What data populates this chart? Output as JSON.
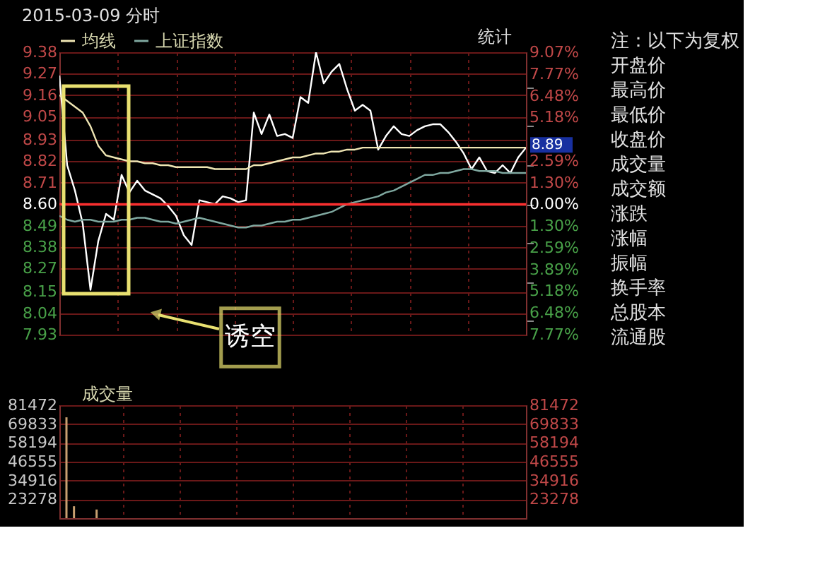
{
  "chart_data": [
    {
      "type": "line",
      "title": "2015-03-09 分时",
      "categories": [
        null,
        null,
        null,
        null,
        null,
        null,
        null,
        null,
        null,
        null,
        null,
        null,
        null,
        null,
        null,
        null,
        null,
        null,
        null,
        null,
        null,
        null,
        null,
        null,
        null,
        null,
        null,
        null,
        null,
        null,
        null,
        null,
        null,
        null,
        null,
        null,
        null,
        null,
        null,
        null,
        null,
        null,
        null,
        null,
        null,
        null,
        null,
        null,
        null,
        null,
        null,
        null,
        null,
        null,
        null,
        null,
        null,
        null,
        null,
        null,
        null
      ],
      "tick_labels": "y",
      "grid": true,
      "legend": "top",
      "ylim": [
        7.93,
        9.38
      ],
      "yticks": [
        9.38,
        9.27,
        9.16,
        9.05,
        8.93,
        8.82,
        8.71,
        {
          "value": 8.6,
          "label": "8.60"
        },
        8.49,
        8.38,
        8.27,
        8.15,
        8.04,
        7.93
      ],
      "y2lim": [
        -7.77,
        9.07
      ],
      "y2ticks": [
        {
          "value": 9.07,
          "label": "9.07%"
        },
        {
          "value": 7.77,
          "label": "7.77%"
        },
        {
          "value": 6.48,
          "label": "6.48%"
        },
        {
          "value": 5.18,
          "label": "5.18%"
        },
        {
          "value": 3.89,
          "label": null
        },
        {
          "value": 2.59,
          "label": "2.59%"
        },
        {
          "value": 1.3,
          "label": "1.30%"
        },
        {
          "value": 0,
          "label": "0.00%"
        },
        {
          "value": -1.3,
          "label": "1.30%"
        },
        {
          "value": -2.59,
          "label": "2.59%"
        },
        {
          "value": -3.89,
          "label": "3.89%"
        },
        {
          "value": -5.18,
          "label": "5.18%"
        },
        {
          "value": -6.48,
          "label": "6.48%"
        },
        {
          "value": -7.77,
          "label": "7.77%"
        }
      ],
      "series": [
        {
          "color": "#ffffff",
          "values": [
            9.26,
            8.8,
            8.67,
            8.5,
            8.16,
            8.41,
            8.55,
            8.52,
            8.75,
            8.66,
            8.72,
            8.67,
            8.65,
            8.63,
            8.59,
            8.54,
            8.44,
            8.39,
            8.62,
            8.61,
            8.6,
            8.64,
            8.63,
            8.61,
            8.62,
            9.07,
            8.96,
            9.06,
            8.95,
            8.96,
            8.94,
            9.15,
            9.12,
            9.38,
            9.22,
            9.28,
            9.32,
            9.19,
            9.08,
            9.11,
            9.08,
            8.88,
            8.95,
            9.0,
            8.96,
            8.95,
            8.98,
            9.0,
            9.01,
            9.01,
            8.97,
            8.92,
            8.86,
            8.78,
            8.84,
            8.77,
            8.76,
            8.8,
            8.76,
            8.84,
            8.89
          ]
        },
        {
          "name": "均线",
          "color": "#f0e6b4",
          "values": [
            9.16,
            9.13,
            9.1,
            9.07,
            9.0,
            8.9,
            8.85,
            8.84,
            8.83,
            8.82,
            8.82,
            8.81,
            8.81,
            8.8,
            8.8,
            8.79,
            8.79,
            8.79,
            8.79,
            8.79,
            8.78,
            8.78,
            8.78,
            8.78,
            8.78,
            8.8,
            8.8,
            8.81,
            8.82,
            8.83,
            8.84,
            8.84,
            8.85,
            8.86,
            8.86,
            8.87,
            8.87,
            8.88,
            8.88,
            8.89,
            8.89,
            8.89,
            8.89,
            8.89,
            8.89,
            8.89,
            8.89,
            8.89,
            8.89,
            8.89,
            8.89,
            8.89,
            8.89,
            8.89,
            8.89,
            8.89,
            8.89,
            8.89,
            8.89,
            8.89,
            8.89
          ]
        },
        {
          "name": "上证指数",
          "color": "#7fa8a0",
          "values": [
            8.54,
            8.52,
            8.51,
            8.52,
            8.52,
            8.51,
            8.51,
            8.51,
            8.52,
            8.52,
            8.53,
            8.53,
            8.52,
            8.51,
            8.51,
            8.5,
            8.51,
            8.52,
            8.53,
            8.52,
            8.51,
            8.5,
            8.49,
            8.48,
            8.48,
            8.49,
            8.49,
            8.5,
            8.51,
            8.51,
            8.52,
            8.52,
            8.53,
            8.54,
            8.55,
            8.56,
            8.58,
            8.6,
            8.61,
            8.62,
            8.63,
            8.64,
            8.66,
            8.67,
            8.69,
            8.71,
            8.73,
            8.75,
            8.75,
            8.76,
            8.76,
            8.77,
            8.78,
            8.78,
            8.77,
            8.77,
            8.77,
            8.76,
            8.76,
            8.76,
            8.76
          ]
        }
      ],
      "ref_lines": [
        {
          "axis": "y",
          "value": 8.6,
          "color": "#ff3030"
        }
      ],
      "annotations": [
        "统计",
        "诱空",
        "8.89"
      ]
    },
    {
      "type": "bar",
      "categories": [
        null,
        null,
        null,
        null,
        null,
        null,
        null,
        null,
        null,
        null,
        null,
        null,
        null,
        null,
        null,
        null,
        null,
        null,
        null,
        null,
        null,
        null,
        null,
        null,
        null,
        null,
        null,
        null,
        null,
        null,
        null,
        null,
        null,
        null,
        null,
        null,
        null,
        null,
        null,
        null,
        null,
        null,
        null,
        null,
        null,
        null,
        null,
        null,
        null,
        null,
        null,
        null,
        null,
        null,
        null,
        null,
        null,
        null,
        null,
        null,
        null
      ],
      "tick_labels": "y",
      "grid": true,
      "legend": "top",
      "ylim": [
        11639,
        81472
      ],
      "yticks": [
        81472,
        69833,
        58194,
        46555,
        34916,
        23278
      ],
      "y2lim": [
        11639,
        81472
      ],
      "y2ticks": [
        81472,
        69833,
        58194,
        46555,
        34916,
        23278
      ],
      "series": [
        {
          "name": "成交量",
          "color": "#c8a070",
          "values": [
            74000,
            19000,
            null,
            null,
            17000,
            null,
            null,
            null,
            null,
            null,
            null,
            null,
            null,
            null,
            null,
            null,
            null,
            null,
            null,
            null,
            null,
            null,
            null,
            null,
            null,
            null,
            null,
            null,
            null,
            null,
            null,
            null,
            null,
            null,
            null,
            null,
            null,
            null,
            null,
            null,
            null,
            null,
            null,
            null,
            null,
            null,
            null,
            null,
            null,
            null,
            null,
            null,
            null,
            null,
            null,
            null,
            null,
            null,
            null,
            null,
            null
          ]
        }
      ]
    },
    {
      "type": "other",
      "annotations": [
        "注：以下为复权",
        "开盘价",
        "最高价",
        "最低价",
        "收盘价",
        "成交量",
        "成交额",
        "涨跌",
        "涨幅",
        "振幅",
        "换手率",
        "总股本",
        "流通股"
      ]
    }
  ]
}
